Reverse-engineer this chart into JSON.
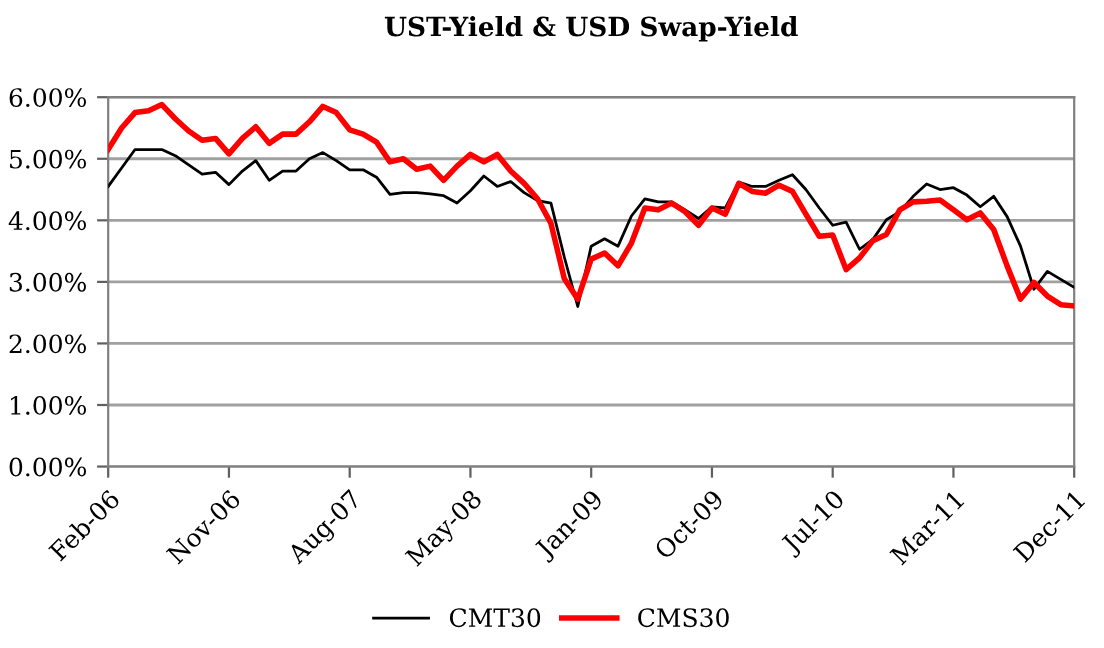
{
  "chart_data": {
    "type": "line",
    "title": "UST-Yield & USD Swap-Yield",
    "categories": [
      "Feb-06",
      null,
      null,
      null,
      null,
      null,
      null,
      null,
      null,
      "Nov-06",
      null,
      null,
      null,
      null,
      null,
      null,
      null,
      null,
      "Aug-07",
      null,
      null,
      null,
      null,
      null,
      null,
      null,
      null,
      "May-08",
      null,
      null,
      null,
      null,
      null,
      null,
      null,
      null,
      "Jan-09",
      null,
      null,
      null,
      null,
      null,
      null,
      null,
      null,
      "Oct-09",
      null,
      null,
      null,
      null,
      null,
      null,
      null,
      null,
      "Jul-10",
      null,
      null,
      null,
      null,
      null,
      null,
      null,
      null,
      "Mar-11",
      null,
      null,
      null,
      null,
      null,
      null,
      null,
      null,
      "Dec-11"
    ],
    "series": [
      {
        "name": "CMT30",
        "color": "#000000",
        "values": [
          4.55,
          4.85,
          5.15,
          5.15,
          5.15,
          5.05,
          4.9,
          4.75,
          4.78,
          4.58,
          4.8,
          4.97,
          4.65,
          4.8,
          4.8,
          5.0,
          5.1,
          4.97,
          4.82,
          4.82,
          4.7,
          4.42,
          4.45,
          4.45,
          4.43,
          4.4,
          4.28,
          4.48,
          4.72,
          4.55,
          4.63,
          4.45,
          4.32,
          4.28,
          3.4,
          2.6,
          3.58,
          3.7,
          3.58,
          4.07,
          4.35,
          4.3,
          4.3,
          4.17,
          4.03,
          4.22,
          4.2,
          4.62,
          4.55,
          4.55,
          4.65,
          4.74,
          4.5,
          4.2,
          3.92,
          3.97,
          3.53,
          3.69,
          4.01,
          4.14,
          4.39,
          4.59,
          4.5,
          4.53,
          4.41,
          4.22,
          4.39,
          4.06,
          3.58,
          2.88,
          3.17,
          3.04,
          2.91
        ]
      },
      {
        "name": "CMS30",
        "color": "#ff0000",
        "values": [
          5.15,
          5.5,
          5.75,
          5.78,
          5.88,
          5.65,
          5.45,
          5.3,
          5.33,
          5.08,
          5.33,
          5.52,
          5.25,
          5.4,
          5.4,
          5.6,
          5.85,
          5.75,
          5.47,
          5.4,
          5.27,
          4.95,
          5.0,
          4.83,
          4.88,
          4.65,
          4.88,
          5.07,
          4.95,
          5.07,
          4.8,
          4.6,
          4.35,
          3.95,
          3.05,
          2.72,
          3.37,
          3.47,
          3.26,
          3.63,
          4.2,
          4.17,
          4.28,
          4.14,
          3.92,
          4.2,
          4.1,
          4.6,
          4.47,
          4.44,
          4.57,
          4.47,
          4.1,
          3.74,
          3.76,
          3.2,
          3.39,
          3.67,
          3.77,
          4.17,
          4.3,
          4.31,
          4.33,
          4.17,
          4.01,
          4.12,
          3.85,
          3.26,
          2.72,
          2.99,
          2.77,
          2.63,
          2.61
        ]
      }
    ],
    "ylim": [
      0,
      6
    ],
    "yticks": [
      {
        "value": 0,
        "label": "0.00%"
      },
      {
        "value": 1,
        "label": "1.00%"
      },
      {
        "value": 2,
        "label": "2.00%"
      },
      {
        "value": 3,
        "label": "3.00%"
      },
      {
        "value": 4,
        "label": "4.00%"
      },
      {
        "value": 5,
        "label": "5.00%"
      },
      {
        "value": 6,
        "label": "6.00%"
      }
    ],
    "grid": "y",
    "legend": "bottom",
    "marker": "none",
    "line_style": "solid"
  }
}
